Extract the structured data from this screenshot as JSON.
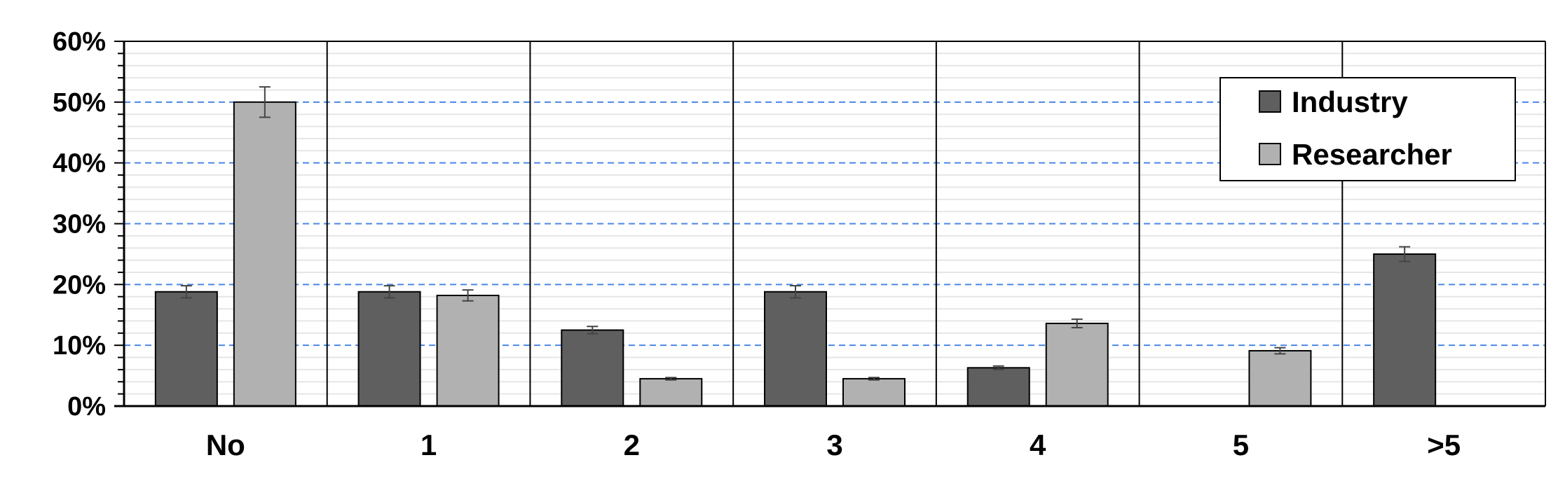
{
  "chart_data": {
    "type": "bar",
    "categories": [
      "No",
      "1",
      "2",
      "3",
      "4",
      "5",
      ">5"
    ],
    "series": [
      {
        "name": "Industry",
        "color": "#5f5f5f",
        "values": [
          18.8,
          18.8,
          12.5,
          18.8,
          6.3,
          0,
          25.0
        ],
        "errors": [
          1.0,
          1.0,
          0.6,
          1.0,
          0.3,
          0,
          1.2
        ]
      },
      {
        "name": "Researcher",
        "color": "#b1b1b1",
        "values": [
          50.0,
          18.2,
          4.5,
          4.5,
          13.6,
          9.1,
          0
        ],
        "errors": [
          2.5,
          0.9,
          0.2,
          0.2,
          0.7,
          0.5,
          0
        ]
      }
    ],
    "y_ticks": [
      "0%",
      "10%",
      "20%",
      "30%",
      "40%",
      "50%",
      "60%"
    ],
    "ylim": [
      0,
      60
    ],
    "y_major_step": 10,
    "y_minor_step": 2,
    "major_grid_color": "#4a86e8",
    "minor_grid_color": "#e6e6e6",
    "legend_position": "top-right",
    "title": "",
    "xlabel": "",
    "ylabel": ""
  }
}
